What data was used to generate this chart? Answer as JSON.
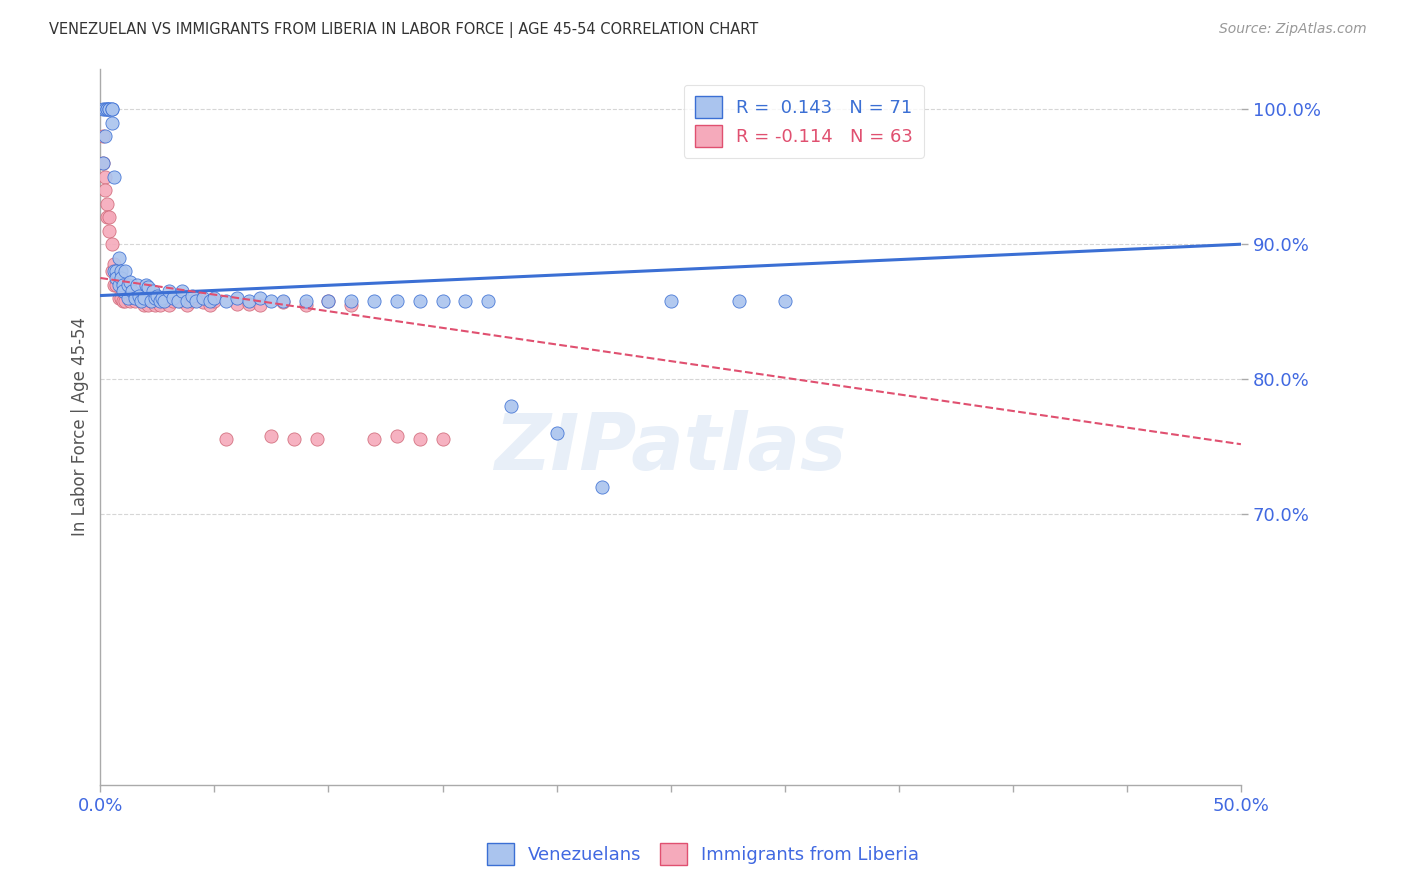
{
  "title": "VENEZUELAN VS IMMIGRANTS FROM LIBERIA IN LABOR FORCE | AGE 45-54 CORRELATION CHART",
  "source": "Source: ZipAtlas.com",
  "xlabel": "",
  "ylabel": "In Labor Force | Age 45-54",
  "x_min": 0.0,
  "x_max": 0.5,
  "y_min": 0.5,
  "y_max": 1.03,
  "x_ticks": [
    0.0,
    0.05,
    0.1,
    0.15,
    0.2,
    0.25,
    0.3,
    0.35,
    0.4,
    0.45,
    0.5
  ],
  "y_ticks": [
    0.7,
    0.8,
    0.9,
    1.0
  ],
  "y_tick_labels": [
    "70.0%",
    "80.0%",
    "90.0%",
    "100.0%"
  ],
  "ven_color": "#aac4ee",
  "lib_color": "#f5aabb",
  "ven_line_color": "#3b6fd4",
  "lib_line_color": "#e05070",
  "grid_color": "#cccccc",
  "axis_label_color": "#4169e1",
  "title_color": "#333333",
  "watermark": "ZIPatlas",
  "legend_R_ven": "0.143",
  "legend_N_ven": "71",
  "legend_R_lib": "-0.114",
  "legend_N_lib": "63",
  "ven_scatter_x": [
    0.001,
    0.001,
    0.002,
    0.002,
    0.003,
    0.003,
    0.004,
    0.004,
    0.005,
    0.005,
    0.005,
    0.006,
    0.006,
    0.007,
    0.007,
    0.008,
    0.008,
    0.009,
    0.009,
    0.01,
    0.01,
    0.011,
    0.012,
    0.012,
    0.013,
    0.014,
    0.015,
    0.016,
    0.017,
    0.018,
    0.019,
    0.02,
    0.021,
    0.022,
    0.023,
    0.024,
    0.025,
    0.026,
    0.027,
    0.028,
    0.03,
    0.032,
    0.034,
    0.036,
    0.038,
    0.04,
    0.042,
    0.045,
    0.048,
    0.05,
    0.055,
    0.06,
    0.065,
    0.07,
    0.075,
    0.08,
    0.09,
    0.1,
    0.11,
    0.12,
    0.13,
    0.14,
    0.15,
    0.16,
    0.17,
    0.18,
    0.2,
    0.22,
    0.25,
    0.28,
    0.3
  ],
  "ven_scatter_y": [
    0.96,
    1.0,
    1.0,
    0.98,
    1.0,
    1.0,
    1.0,
    1.0,
    1.0,
    1.0,
    0.99,
    0.95,
    0.88,
    0.88,
    0.875,
    0.89,
    0.87,
    0.88,
    0.875,
    0.87,
    0.865,
    0.88,
    0.87,
    0.86,
    0.872,
    0.865,
    0.86,
    0.87,
    0.862,
    0.858,
    0.86,
    0.87,
    0.868,
    0.858,
    0.865,
    0.86,
    0.862,
    0.858,
    0.86,
    0.858,
    0.865,
    0.86,
    0.858,
    0.865,
    0.858,
    0.862,
    0.858,
    0.86,
    0.858,
    0.86,
    0.858,
    0.86,
    0.858,
    0.86,
    0.858,
    0.858,
    0.858,
    0.858,
    0.858,
    0.858,
    0.858,
    0.858,
    0.858,
    0.858,
    0.858,
    0.78,
    0.76,
    0.72,
    0.858,
    0.858,
    0.858
  ],
  "lib_scatter_x": [
    0.001,
    0.001,
    0.002,
    0.002,
    0.003,
    0.003,
    0.004,
    0.004,
    0.005,
    0.005,
    0.006,
    0.006,
    0.007,
    0.007,
    0.008,
    0.008,
    0.009,
    0.009,
    0.01,
    0.01,
    0.011,
    0.011,
    0.012,
    0.013,
    0.013,
    0.014,
    0.015,
    0.016,
    0.017,
    0.018,
    0.019,
    0.02,
    0.021,
    0.022,
    0.023,
    0.024,
    0.025,
    0.026,
    0.028,
    0.03,
    0.032,
    0.035,
    0.038,
    0.04,
    0.042,
    0.045,
    0.048,
    0.05,
    0.055,
    0.06,
    0.065,
    0.07,
    0.075,
    0.08,
    0.085,
    0.09,
    0.095,
    0.1,
    0.11,
    0.12,
    0.13,
    0.14,
    0.15
  ],
  "lib_scatter_y": [
    0.98,
    0.96,
    0.95,
    0.94,
    0.93,
    0.92,
    0.92,
    0.91,
    0.9,
    0.88,
    0.885,
    0.87,
    0.88,
    0.87,
    0.875,
    0.86,
    0.87,
    0.86,
    0.87,
    0.858,
    0.865,
    0.858,
    0.87,
    0.862,
    0.858,
    0.862,
    0.858,
    0.863,
    0.86,
    0.858,
    0.855,
    0.868,
    0.855,
    0.858,
    0.86,
    0.855,
    0.86,
    0.855,
    0.858,
    0.855,
    0.858,
    0.858,
    0.855,
    0.858,
    0.86,
    0.857,
    0.855,
    0.858,
    0.756,
    0.856,
    0.856,
    0.855,
    0.758,
    0.857,
    0.756,
    0.855,
    0.756,
    0.858,
    0.855,
    0.756,
    0.758,
    0.756,
    0.756
  ],
  "background_color": "#ffffff",
  "ven_trend_x0": 0.0,
  "ven_trend_y0": 0.862,
  "ven_trend_x1": 0.5,
  "ven_trend_y1": 0.9,
  "lib_trend_x0": 0.0,
  "lib_trend_y0": 0.875,
  "lib_trend_x1": 0.5,
  "lib_trend_y1": 0.752
}
